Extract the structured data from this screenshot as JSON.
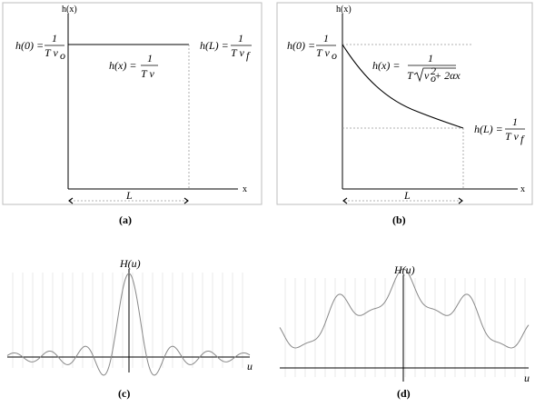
{
  "panels": {
    "a": {
      "caption": "(a)",
      "y_axis": "h(x)",
      "x_axis": "x",
      "h0_lhs": "h(0) =",
      "h0_num": "1",
      "h0_den": "T v",
      "h0_sub": "o",
      "hx_lhs": "h(x) =",
      "hx_num": "1",
      "hx_den": "T v",
      "hL_lhs": "h(L) =",
      "hL_num": "1",
      "hL_den": "T v",
      "hL_sub": "f",
      "span": "L"
    },
    "b": {
      "caption": "(b)",
      "y_axis": "h(x)",
      "x_axis": "x",
      "h0_lhs": "h(0) =",
      "h0_num": "1",
      "h0_den": "T v",
      "h0_sub": "o",
      "hx_lhs": "h(x) =",
      "hx_num": "1",
      "hx_den_T": "T",
      "hx_den_v": "v",
      "hx_den_sup": "2",
      "hx_den_sub": "o",
      "hx_den_rest": " + 2αx",
      "hL_lhs": "h(L) =",
      "hL_num": "1",
      "hL_den": "T v",
      "hL_sub": "f",
      "span": "L"
    },
    "c": {
      "caption": "(c)",
      "y_axis": "H(u)",
      "x_axis": "u"
    },
    "d": {
      "caption": "(d)",
      "y_axis": "H(u)",
      "x_axis": "u"
    }
  },
  "colors": {
    "axis": "#000000",
    "wave": "#888888",
    "frame": "#bdbdbd",
    "grid": "#e4e4e4"
  }
}
